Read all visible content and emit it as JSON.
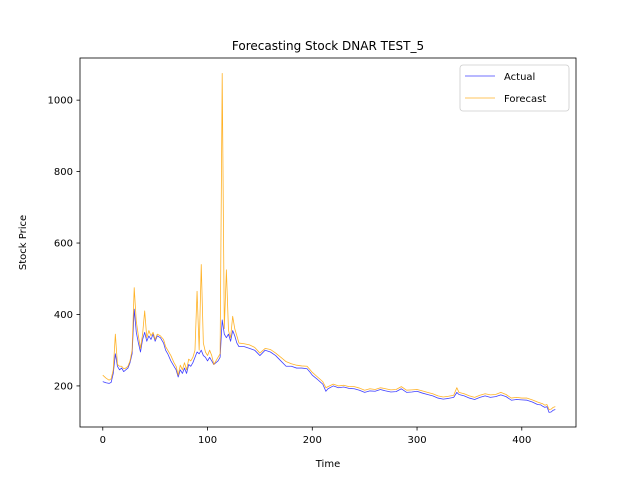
{
  "chart_data": {
    "type": "line",
    "title": "Forecasting Stock DNAR TEST_5",
    "xlabel": "Time",
    "ylabel": "Stock Price",
    "xlim": [
      -21.75,
      451.75
    ],
    "ylim": [
      85,
      1118
    ],
    "xticks": [
      0,
      100,
      200,
      300,
      400
    ],
    "yticks": [
      200,
      400,
      600,
      800,
      1000
    ],
    "grid": false,
    "legend_position": "top-right",
    "series": [
      {
        "name": "Actual",
        "color": "#0000ff",
        "points": [
          [
            0,
            212
          ],
          [
            3,
            209
          ],
          [
            6,
            207
          ],
          [
            8,
            210
          ],
          [
            10,
            235
          ],
          [
            12,
            290
          ],
          [
            14,
            255
          ],
          [
            16,
            245
          ],
          [
            18,
            250
          ],
          [
            20,
            240
          ],
          [
            22,
            245
          ],
          [
            24,
            250
          ],
          [
            26,
            265
          ],
          [
            28,
            290
          ],
          [
            30,
            415
          ],
          [
            32,
            350
          ],
          [
            34,
            320
          ],
          [
            36,
            295
          ],
          [
            38,
            330
          ],
          [
            40,
            350
          ],
          [
            42,
            325
          ],
          [
            44,
            340
          ],
          [
            46,
            330
          ],
          [
            48,
            345
          ],
          [
            50,
            325
          ],
          [
            52,
            340
          ],
          [
            55,
            335
          ],
          [
            58,
            320
          ],
          [
            60,
            300
          ],
          [
            62,
            290
          ],
          [
            65,
            270
          ],
          [
            68,
            255
          ],
          [
            70,
            245
          ],
          [
            72,
            225
          ],
          [
            74,
            245
          ],
          [
            76,
            235
          ],
          [
            78,
            250
          ],
          [
            80,
            235
          ],
          [
            82,
            260
          ],
          [
            84,
            255
          ],
          [
            86,
            265
          ],
          [
            88,
            280
          ],
          [
            90,
            295
          ],
          [
            92,
            290
          ],
          [
            94,
            300
          ],
          [
            96,
            285
          ],
          [
            98,
            280
          ],
          [
            100,
            270
          ],
          [
            102,
            280
          ],
          [
            104,
            270
          ],
          [
            106,
            260
          ],
          [
            108,
            265
          ],
          [
            110,
            270
          ],
          [
            112,
            280
          ],
          [
            114,
            385
          ],
          [
            116,
            345
          ],
          [
            118,
            335
          ],
          [
            120,
            345
          ],
          [
            122,
            325
          ],
          [
            124,
            355
          ],
          [
            126,
            340
          ],
          [
            128,
            320
          ],
          [
            130,
            310
          ],
          [
            135,
            310
          ],
          [
            140,
            305
          ],
          [
            145,
            300
          ],
          [
            150,
            285
          ],
          [
            155,
            300
          ],
          [
            160,
            295
          ],
          [
            165,
            285
          ],
          [
            170,
            270
          ],
          [
            175,
            255
          ],
          [
            180,
            255
          ],
          [
            185,
            250
          ],
          [
            190,
            250
          ],
          [
            195,
            248
          ],
          [
            198,
            238
          ],
          [
            200,
            230
          ],
          [
            205,
            218
          ],
          [
            210,
            205
          ],
          [
            213,
            185
          ],
          [
            215,
            192
          ],
          [
            220,
            200
          ],
          [
            225,
            195
          ],
          [
            230,
            197
          ],
          [
            235,
            193
          ],
          [
            240,
            192
          ],
          [
            245,
            188
          ],
          [
            250,
            182
          ],
          [
            255,
            186
          ],
          [
            260,
            185
          ],
          [
            265,
            190
          ],
          [
            270,
            186
          ],
          [
            275,
            183
          ],
          [
            280,
            184
          ],
          [
            285,
            192
          ],
          [
            290,
            182
          ],
          [
            295,
            183
          ],
          [
            300,
            185
          ],
          [
            305,
            180
          ],
          [
            310,
            176
          ],
          [
            315,
            172
          ],
          [
            320,
            166
          ],
          [
            325,
            163
          ],
          [
            330,
            165
          ],
          [
            335,
            168
          ],
          [
            338,
            182
          ],
          [
            340,
            176
          ],
          [
            345,
            172
          ],
          [
            350,
            166
          ],
          [
            355,
            162
          ],
          [
            360,
            168
          ],
          [
            365,
            172
          ],
          [
            370,
            168
          ],
          [
            375,
            170
          ],
          [
            380,
            175
          ],
          [
            385,
            170
          ],
          [
            390,
            160
          ],
          [
            395,
            162
          ],
          [
            400,
            161
          ],
          [
            405,
            160
          ],
          [
            410,
            155
          ],
          [
            415,
            148
          ],
          [
            418,
            147
          ],
          [
            420,
            143
          ],
          [
            422,
            140
          ],
          [
            424,
            142
          ],
          [
            426,
            126
          ],
          [
            428,
            127
          ],
          [
            430,
            132
          ],
          [
            432,
            134
          ]
        ]
      },
      {
        "name": "Forecast",
        "color": "#ffa500",
        "points": [
          [
            0,
            230
          ],
          [
            3,
            222
          ],
          [
            6,
            216
          ],
          [
            8,
            220
          ],
          [
            10,
            245
          ],
          [
            12,
            345
          ],
          [
            14,
            260
          ],
          [
            16,
            255
          ],
          [
            18,
            255
          ],
          [
            20,
            248
          ],
          [
            22,
            250
          ],
          [
            24,
            255
          ],
          [
            26,
            270
          ],
          [
            28,
            300
          ],
          [
            30,
            475
          ],
          [
            32,
            380
          ],
          [
            34,
            340
          ],
          [
            36,
            305
          ],
          [
            38,
            345
          ],
          [
            40,
            410
          ],
          [
            42,
            335
          ],
          [
            44,
            355
          ],
          [
            46,
            340
          ],
          [
            48,
            350
          ],
          [
            50,
            330
          ],
          [
            52,
            345
          ],
          [
            55,
            340
          ],
          [
            58,
            330
          ],
          [
            60,
            310
          ],
          [
            62,
            300
          ],
          [
            65,
            285
          ],
          [
            68,
            265
          ],
          [
            70,
            255
          ],
          [
            72,
            230
          ],
          [
            74,
            258
          ],
          [
            76,
            245
          ],
          [
            78,
            265
          ],
          [
            80,
            245
          ],
          [
            82,
            275
          ],
          [
            84,
            270
          ],
          [
            86,
            280
          ],
          [
            88,
            300
          ],
          [
            90,
            465
          ],
          [
            92,
            300
          ],
          [
            94,
            540
          ],
          [
            96,
            320
          ],
          [
            98,
            295
          ],
          [
            100,
            285
          ],
          [
            102,
            300
          ],
          [
            104,
            285
          ],
          [
            106,
            260
          ],
          [
            108,
            270
          ],
          [
            110,
            280
          ],
          [
            112,
            290
          ],
          [
            114,
            1075
          ],
          [
            116,
            360
          ],
          [
            118,
            525
          ],
          [
            120,
            355
          ],
          [
            122,
            335
          ],
          [
            124,
            395
          ],
          [
            126,
            360
          ],
          [
            128,
            340
          ],
          [
            130,
            320
          ],
          [
            135,
            318
          ],
          [
            140,
            315
          ],
          [
            145,
            308
          ],
          [
            150,
            292
          ],
          [
            155,
            305
          ],
          [
            160,
            302
          ],
          [
            165,
            292
          ],
          [
            170,
            280
          ],
          [
            175,
            268
          ],
          [
            180,
            262
          ],
          [
            185,
            258
          ],
          [
            190,
            256
          ],
          [
            195,
            255
          ],
          [
            198,
            245
          ],
          [
            200,
            238
          ],
          [
            205,
            225
          ],
          [
            210,
            212
          ],
          [
            213,
            195
          ],
          [
            215,
            198
          ],
          [
            220,
            205
          ],
          [
            225,
            200
          ],
          [
            230,
            202
          ],
          [
            235,
            198
          ],
          [
            240,
            198
          ],
          [
            245,
            194
          ],
          [
            250,
            188
          ],
          [
            255,
            192
          ],
          [
            260,
            190
          ],
          [
            265,
            195
          ],
          [
            270,
            192
          ],
          [
            275,
            189
          ],
          [
            280,
            190
          ],
          [
            285,
            198
          ],
          [
            290,
            188
          ],
          [
            295,
            189
          ],
          [
            300,
            190
          ],
          [
            305,
            186
          ],
          [
            310,
            182
          ],
          [
            315,
            178
          ],
          [
            320,
            172
          ],
          [
            325,
            169
          ],
          [
            330,
            171
          ],
          [
            335,
            174
          ],
          [
            338,
            195
          ],
          [
            340,
            182
          ],
          [
            345,
            178
          ],
          [
            350,
            172
          ],
          [
            355,
            168
          ],
          [
            360,
            174
          ],
          [
            365,
            178
          ],
          [
            370,
            175
          ],
          [
            375,
            176
          ],
          [
            380,
            182
          ],
          [
            385,
            176
          ],
          [
            390,
            166
          ],
          [
            395,
            168
          ],
          [
            400,
            166
          ],
          [
            405,
            166
          ],
          [
            410,
            161
          ],
          [
            415,
            155
          ],
          [
            418,
            152
          ],
          [
            420,
            150
          ],
          [
            422,
            146
          ],
          [
            424,
            148
          ],
          [
            426,
            134
          ],
          [
            428,
            135
          ],
          [
            430,
            140
          ],
          [
            432,
            142
          ]
        ]
      }
    ]
  }
}
